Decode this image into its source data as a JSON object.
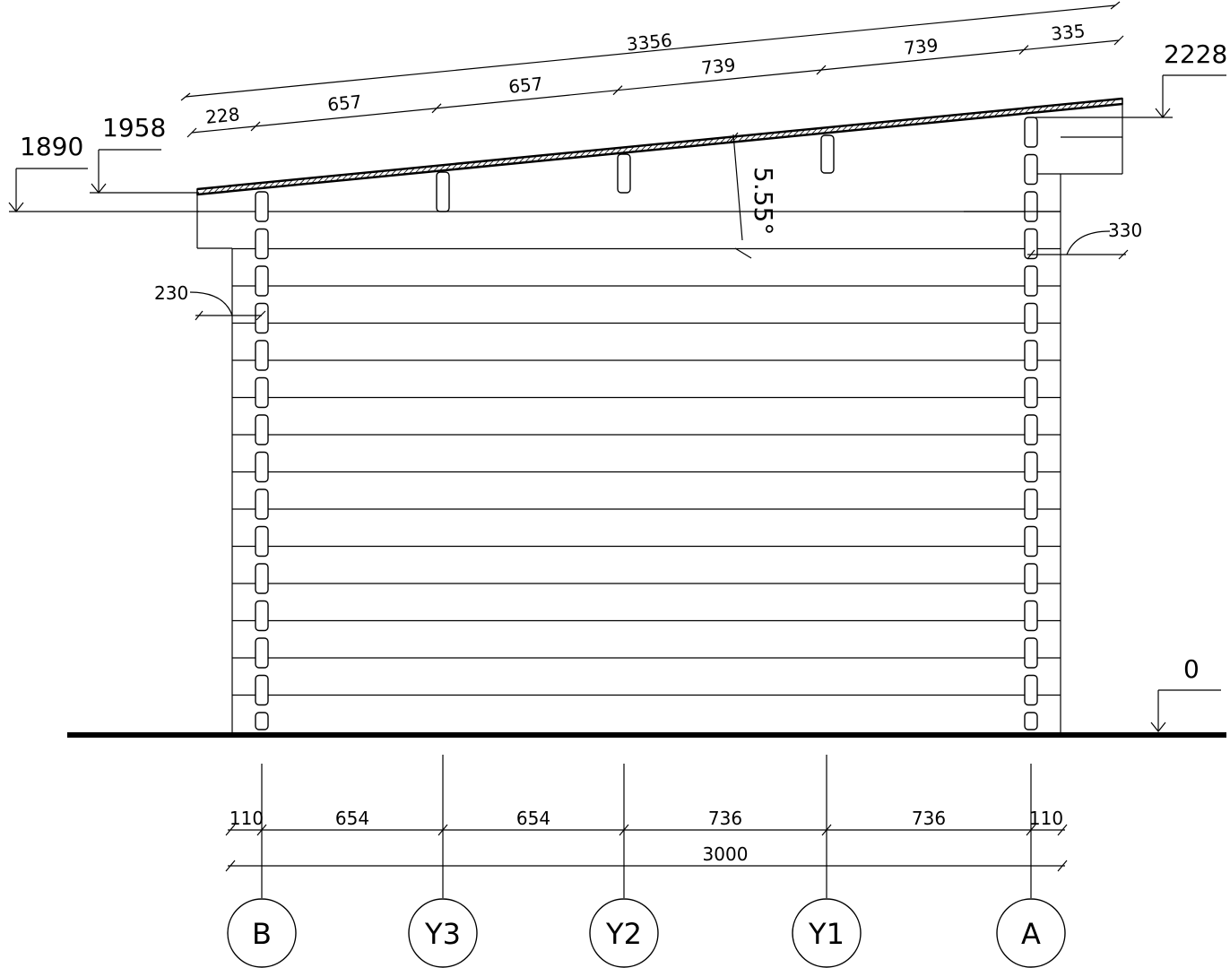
{
  "levels": {
    "roof_high": "2228",
    "roof_low": "1958",
    "wall_top": "1890",
    "ground": "0"
  },
  "angle": "5.55°",
  "slope_dims": {
    "total": "3356",
    "segments": [
      "228",
      "657",
      "657",
      "739",
      "739",
      "335"
    ]
  },
  "overhang": {
    "left": "230",
    "right": "330"
  },
  "bottom_dims": {
    "segments": [
      "110",
      "654",
      "654",
      "736",
      "736",
      "110"
    ],
    "total": "3000"
  },
  "axes": [
    "B",
    "Y3",
    "Y2",
    "Y1",
    "A"
  ]
}
